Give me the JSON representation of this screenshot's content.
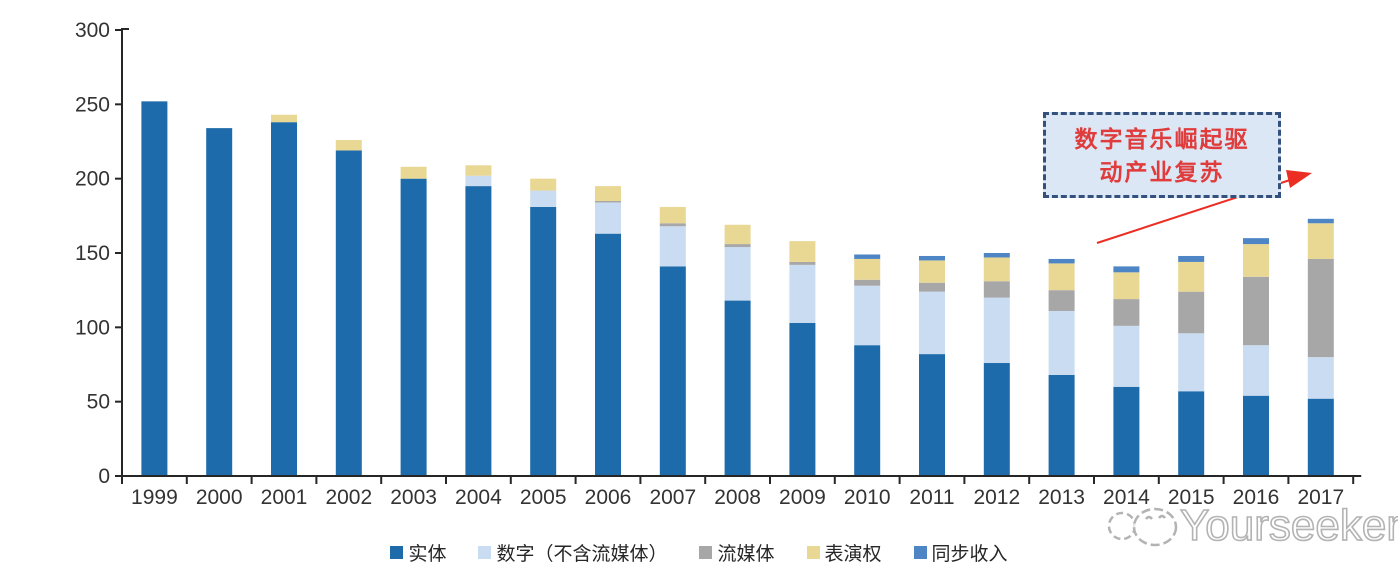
{
  "chart_data": {
    "type": "bar",
    "variant": "stacked-vertical",
    "title": "",
    "xlabel": "",
    "ylabel": "",
    "categories": [
      "1999",
      "2000",
      "2001",
      "2002",
      "2003",
      "2004",
      "2005",
      "2006",
      "2007",
      "2008",
      "2009",
      "2010",
      "2011",
      "2012",
      "2013",
      "2014",
      "2015",
      "2016",
      "2017"
    ],
    "series": [
      {
        "name": "实体",
        "color": "#1e6bab",
        "values": [
          252,
          234,
          238,
          219,
          200,
          195,
          181,
          163,
          141,
          118,
          103,
          88,
          82,
          76,
          68,
          60,
          57,
          54,
          52
        ]
      },
      {
        "name": "数字（不含流媒体）",
        "color": "#c9dcf1",
        "values": [
          0,
          0,
          0,
          0,
          0,
          7,
          11,
          21,
          27,
          36,
          39,
          40,
          42,
          44,
          43,
          41,
          39,
          34,
          28
        ]
      },
      {
        "name": "流媒体",
        "color": "#a7a7a7",
        "values": [
          0,
          0,
          0,
          0,
          0,
          0,
          0,
          1,
          2,
          2,
          2,
          4,
          6,
          11,
          14,
          18,
          28,
          46,
          66
        ]
      },
      {
        "name": "表演权",
        "color": "#e9d794",
        "values": [
          0,
          0,
          5,
          7,
          8,
          7,
          8,
          10,
          11,
          13,
          14,
          14,
          15,
          16,
          18,
          18,
          20,
          22,
          24
        ]
      },
      {
        "name": "同步收入",
        "color": "#4e86c5",
        "values": [
          0,
          0,
          0,
          0,
          0,
          0,
          0,
          0,
          0,
          0,
          0,
          3,
          3,
          3,
          3,
          4,
          4,
          4,
          3
        ]
      }
    ],
    "ylim": [
      0,
      300
    ],
    "yticks": [
      0,
      50,
      100,
      150,
      200,
      250,
      300
    ],
    "grid": false,
    "legend_position": "bottom"
  },
  "annotation": {
    "line1": "数字音乐崛起驱",
    "line2": "动产业复苏",
    "box_fill": "#dbe7f5",
    "border_color": "#34517e",
    "text_color": "#e03c3c",
    "arrow_color": "#ec2d24"
  },
  "watermark": {
    "text": "Yourseeker",
    "color": "#b3b3b3"
  },
  "colors": {
    "axis": "#262626",
    "tick_label": "#333333",
    "background": "#ffffff"
  }
}
